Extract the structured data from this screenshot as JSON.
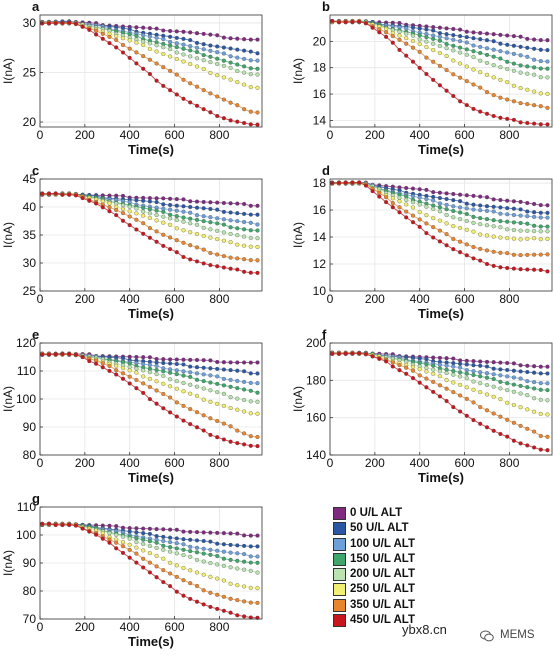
{
  "chart_data": [
    {
      "type": "line",
      "panel_label": "a",
      "xlabel": "Time(s)",
      "ylabel": "I(nA)",
      "xlim": [
        0,
        990
      ],
      "ylim": [
        19.5,
        30.8
      ],
      "xticks": [
        0,
        200,
        400,
        600,
        800
      ],
      "yticks": [
        20,
        25,
        30
      ],
      "series": [
        {
          "name": "0 U/L ALT",
          "start": 30.1,
          "values": [
            29.9,
            29.7,
            29.5,
            29.3,
            29.1,
            28.8,
            28.5,
            28.3
          ]
        },
        {
          "name": "50 U/L ALT",
          "start": 30.1,
          "values": [
            29.8,
            29.5,
            29.1,
            28.7,
            28.3,
            27.8,
            27.4,
            27.0
          ]
        },
        {
          "name": "100 U/L ALT",
          "start": 30.0,
          "values": [
            29.7,
            29.3,
            28.8,
            28.3,
            27.8,
            27.2,
            26.7,
            26.2
          ]
        },
        {
          "name": "150 U/L ALT",
          "start": 30.0,
          "values": [
            29.6,
            29.1,
            28.5,
            27.9,
            27.3,
            26.7,
            26.0,
            25.3
          ]
        },
        {
          "name": "200 U/L ALT",
          "start": 30.0,
          "values": [
            29.5,
            28.9,
            28.2,
            27.5,
            26.8,
            26.1,
            25.4,
            24.8
          ]
        },
        {
          "name": "250 U/L ALT",
          "start": 30.0,
          "values": [
            29.4,
            28.6,
            27.8,
            26.9,
            26.0,
            25.1,
            24.3,
            23.4
          ]
        },
        {
          "name": "350 U/L ALT",
          "start": 30.0,
          "values": [
            29.2,
            28.1,
            26.8,
            25.5,
            24.2,
            23.0,
            21.9,
            21.0
          ]
        },
        {
          "name": "450 U/L ALT",
          "start": 30.0,
          "values": [
            28.9,
            27.4,
            25.5,
            23.7,
            22.2,
            21.0,
            20.2,
            19.7
          ]
        }
      ]
    },
    {
      "type": "line",
      "panel_label": "b",
      "xlabel": "Time(s)",
      "ylabel": "I(nA)",
      "xlim": [
        0,
        990
      ],
      "ylim": [
        13.5,
        22.0
      ],
      "xticks": [
        0,
        200,
        400,
        600,
        800
      ],
      "yticks": [
        14,
        16,
        18,
        20
      ],
      "series": [
        {
          "name": "0 U/L ALT",
          "start": 21.5,
          "values": [
            21.4,
            21.3,
            21.1,
            20.9,
            20.7,
            20.5,
            20.3,
            20.1
          ]
        },
        {
          "name": "50 U/L ALT",
          "start": 21.5,
          "values": [
            21.3,
            21.1,
            20.8,
            20.5,
            20.2,
            19.9,
            19.6,
            19.3
          ]
        },
        {
          "name": "100 U/L ALT",
          "start": 21.5,
          "values": [
            21.2,
            20.9,
            20.5,
            20.1,
            19.7,
            19.3,
            18.9,
            18.5
          ]
        },
        {
          "name": "150 U/L ALT",
          "start": 21.5,
          "values": [
            21.1,
            20.7,
            20.2,
            19.7,
            19.2,
            18.7,
            18.2,
            17.9
          ]
        },
        {
          "name": "200 U/L ALT",
          "start": 21.5,
          "values": [
            21.0,
            20.5,
            19.9,
            19.3,
            18.7,
            18.1,
            17.6,
            17.3
          ]
        },
        {
          "name": "250 U/L ALT",
          "start": 21.5,
          "values": [
            20.9,
            20.2,
            19.4,
            18.6,
            17.8,
            17.1,
            16.5,
            16.0
          ]
        },
        {
          "name": "350 U/L ALT",
          "start": 21.5,
          "values": [
            20.7,
            19.7,
            18.6,
            17.5,
            16.6,
            15.8,
            15.3,
            15.0
          ]
        },
        {
          "name": "450 U/L ALT",
          "start": 21.5,
          "values": [
            20.3,
            18.8,
            17.2,
            15.8,
            14.8,
            14.2,
            13.9,
            13.7
          ]
        }
      ]
    },
    {
      "type": "line",
      "panel_label": "c",
      "xlabel": "Time(s)",
      "ylabel": "I(nA)",
      "xlim": [
        0,
        990
      ],
      "ylim": [
        25,
        45
      ],
      "xticks": [
        0,
        200,
        400,
        600,
        800
      ],
      "yticks": [
        25,
        30,
        35,
        40,
        45
      ],
      "series": [
        {
          "name": "0 U/L ALT",
          "start": 42.3,
          "values": [
            42.1,
            41.9,
            41.7,
            41.5,
            41.2,
            40.9,
            40.6,
            40.3
          ]
        },
        {
          "name": "50 U/L ALT",
          "start": 42.3,
          "values": [
            41.9,
            41.5,
            41.1,
            40.6,
            40.1,
            39.6,
            39.1,
            38.6
          ]
        },
        {
          "name": "100 U/L ALT",
          "start": 42.3,
          "values": [
            41.7,
            41.1,
            40.4,
            39.7,
            39.0,
            38.3,
            37.6,
            37.0
          ]
        },
        {
          "name": "150 U/L ALT",
          "start": 42.3,
          "values": [
            41.6,
            40.8,
            39.9,
            39.0,
            38.1,
            37.3,
            36.5,
            35.8
          ]
        },
        {
          "name": "200 U/L ALT",
          "start": 42.3,
          "values": [
            41.5,
            40.5,
            39.4,
            38.3,
            37.2,
            36.2,
            35.2,
            34.3
          ]
        },
        {
          "name": "250 U/L ALT",
          "start": 42.3,
          "values": [
            41.3,
            40.0,
            38.6,
            37.1,
            35.8,
            34.6,
            33.6,
            32.9
          ]
        },
        {
          "name": "350 U/L ALT",
          "start": 42.3,
          "values": [
            41.0,
            39.3,
            37.2,
            35.1,
            33.4,
            32.0,
            31.0,
            30.4
          ]
        },
        {
          "name": "450 U/L ALT",
          "start": 42.3,
          "values": [
            40.6,
            38.2,
            35.5,
            33.0,
            31.0,
            29.7,
            28.9,
            28.3
          ]
        }
      ]
    },
    {
      "type": "line",
      "panel_label": "d",
      "xlabel": "Time(s)",
      "ylabel": "I(nA)",
      "xlim": [
        0,
        990
      ],
      "ylim": [
        10,
        18.3
      ],
      "xticks": [
        0,
        200,
        400,
        600,
        800
      ],
      "yticks": [
        10,
        12,
        14,
        16,
        18
      ],
      "series": [
        {
          "name": "0 U/L ALT",
          "start": 18.0,
          "values": [
            17.8,
            17.6,
            17.4,
            17.2,
            17.0,
            16.8,
            16.6,
            16.3
          ]
        },
        {
          "name": "50 U/L ALT",
          "start": 18.0,
          "values": [
            17.6,
            17.3,
            17.0,
            16.7,
            16.4,
            16.2,
            16.0,
            15.8
          ]
        },
        {
          "name": "100 U/L ALT",
          "start": 18.0,
          "values": [
            17.5,
            17.1,
            16.7,
            16.3,
            16.0,
            15.8,
            15.6,
            15.4
          ]
        },
        {
          "name": "150 U/L ALT",
          "start": 18.0,
          "values": [
            17.4,
            16.9,
            16.4,
            15.9,
            15.5,
            15.2,
            15.0,
            14.8
          ]
        },
        {
          "name": "200 U/L ALT",
          "start": 18.0,
          "values": [
            17.3,
            16.7,
            16.1,
            15.5,
            15.0,
            14.7,
            14.5,
            14.4
          ]
        },
        {
          "name": "250 U/L ALT",
          "start": 18.0,
          "values": [
            17.1,
            16.3,
            15.5,
            14.8,
            14.3,
            14.0,
            13.8,
            13.9
          ]
        },
        {
          "name": "350 U/L ALT",
          "start": 18.0,
          "values": [
            16.9,
            15.8,
            14.8,
            13.9,
            13.2,
            12.8,
            12.7,
            12.7
          ]
        },
        {
          "name": "450 U/L ALT",
          "start": 18.0,
          "values": [
            16.6,
            15.3,
            14.1,
            13.1,
            12.3,
            11.8,
            11.6,
            11.5
          ]
        }
      ]
    },
    {
      "type": "line",
      "panel_label": "e",
      "xlabel": "Time(s)",
      "ylabel": "I(nA)",
      "xlim": [
        0,
        990
      ],
      "ylim": [
        80,
        120
      ],
      "xticks": [
        0,
        200,
        400,
        600,
        800
      ],
      "yticks": [
        80,
        90,
        100,
        110,
        120
      ],
      "series": [
        {
          "name": "0 U/L ALT",
          "start": 116.0,
          "values": [
            115.6,
            115.2,
            114.8,
            114.4,
            114.0,
            113.6,
            113.2,
            112.9
          ]
        },
        {
          "name": "50 U/L ALT",
          "start": 116.0,
          "values": [
            115.3,
            114.5,
            113.7,
            112.8,
            112.0,
            111.1,
            110.2,
            109.3
          ]
        },
        {
          "name": "100 U/L ALT",
          "start": 116.0,
          "values": [
            115.0,
            113.8,
            112.5,
            111.2,
            109.8,
            108.4,
            107.0,
            105.6
          ]
        },
        {
          "name": "150 U/L ALT",
          "start": 116.0,
          "values": [
            114.8,
            113.3,
            111.6,
            109.9,
            108.0,
            106.2,
            104.3,
            102.5
          ]
        },
        {
          "name": "200 U/L ALT",
          "start": 116.0,
          "values": [
            114.6,
            112.6,
            110.4,
            108.0,
            105.6,
            103.2,
            100.9,
            99.0
          ]
        },
        {
          "name": "250 U/L ALT",
          "start": 116.0,
          "values": [
            114.2,
            111.5,
            108.6,
            105.5,
            102.3,
            99.4,
            96.8,
            94.5
          ]
        },
        {
          "name": "350 U/L ALT",
          "start": 116.0,
          "values": [
            113.6,
            110.2,
            106.0,
            101.6,
            97.3,
            93.4,
            90.0,
            86.5
          ]
        },
        {
          "name": "450 U/L ALT",
          "start": 116.0,
          "values": [
            112.8,
            108.3,
            102.5,
            96.8,
            91.7,
            87.7,
            84.8,
            83.0
          ]
        }
      ]
    },
    {
      "type": "line",
      "panel_label": "f",
      "xlabel": "Time(s)",
      "ylabel": "I(nA)",
      "xlim": [
        0,
        990
      ],
      "ylim": [
        140,
        200
      ],
      "xticks": [
        0,
        200,
        400,
        600,
        800
      ],
      "yticks": [
        140,
        160,
        180,
        200
      ],
      "series": [
        {
          "name": "0 U/L ALT",
          "start": 194.5,
          "values": [
            193.8,
            193.0,
            192.2,
            191.3,
            190.4,
            189.4,
            188.4,
            187.3
          ]
        },
        {
          "name": "50 U/L ALT",
          "start": 194.5,
          "values": [
            193.4,
            192.1,
            190.7,
            189.3,
            187.8,
            186.3,
            184.8,
            183.3
          ]
        },
        {
          "name": "100 U/L ALT",
          "start": 194.5,
          "values": [
            193.0,
            191.2,
            189.2,
            187.1,
            185.0,
            182.8,
            180.6,
            178.5
          ]
        },
        {
          "name": "150 U/L ALT",
          "start": 194.5,
          "values": [
            192.7,
            190.4,
            187.8,
            185.2,
            182.5,
            179.8,
            177.1,
            174.5
          ]
        },
        {
          "name": "200 U/L ALT",
          "start": 194.5,
          "values": [
            192.3,
            189.4,
            186.2,
            182.8,
            179.4,
            176.0,
            172.7,
            169.5
          ]
        },
        {
          "name": "250 U/L ALT",
          "start": 194.5,
          "values": [
            191.7,
            188.0,
            183.7,
            179.1,
            174.5,
            170.0,
            165.8,
            161.5
          ]
        },
        {
          "name": "350 U/L ALT",
          "start": 194.5,
          "values": [
            191.0,
            186.0,
            180.0,
            173.6,
            167.2,
            161.2,
            155.4,
            150.0
          ]
        },
        {
          "name": "450 U/L ALT",
          "start": 194.5,
          "values": [
            189.8,
            183.0,
            174.5,
            166.0,
            158.0,
            151.5,
            146.5,
            142.5
          ]
        }
      ]
    },
    {
      "type": "line",
      "panel_label": "g",
      "xlabel": "Time(s)",
      "ylabel": "I(nA)",
      "xlim": [
        0,
        990
      ],
      "ylim": [
        70,
        110
      ],
      "xticks": [
        0,
        200,
        400,
        600,
        800
      ],
      "yticks": [
        70,
        80,
        90,
        100,
        110
      ],
      "series": [
        {
          "name": "0 U/L ALT",
          "start": 103.8,
          "values": [
            103.4,
            102.9,
            102.4,
            101.9,
            101.4,
            100.9,
            100.4,
            99.9
          ]
        },
        {
          "name": "50 U/L ALT",
          "start": 103.8,
          "values": [
            102.9,
            101.8,
            100.6,
            99.5,
            98.4,
            97.5,
            96.6,
            95.8
          ]
        },
        {
          "name": "100 U/L ALT",
          "start": 103.8,
          "values": [
            102.5,
            101.0,
            99.4,
            97.8,
            96.3,
            94.9,
            93.6,
            92.5
          ]
        },
        {
          "name": "150 U/L ALT",
          "start": 103.8,
          "values": [
            102.3,
            100.4,
            98.4,
            96.4,
            94.6,
            92.9,
            91.3,
            90.0
          ]
        },
        {
          "name": "200 U/L ALT",
          "start": 103.8,
          "values": [
            102.0,
            99.7,
            97.2,
            94.7,
            92.4,
            90.3,
            88.4,
            86.8
          ]
        },
        {
          "name": "250 U/L ALT",
          "start": 103.8,
          "values": [
            101.4,
            98.3,
            94.8,
            91.3,
            88.0,
            85.2,
            82.8,
            81.0
          ]
        },
        {
          "name": "350 U/L ALT",
          "start": 103.8,
          "values": [
            100.8,
            96.8,
            92.2,
            87.5,
            83.3,
            79.8,
            77.2,
            75.5
          ]
        },
        {
          "name": "450 U/L ALT",
          "start": 103.8,
          "values": [
            100.0,
            95.0,
            89.0,
            83.0,
            78.0,
            74.5,
            72.0,
            70.5
          ]
        }
      ]
    }
  ],
  "legend": {
    "items": [
      {
        "label": "0 U/L ALT",
        "color": "#7e2a7e"
      },
      {
        "label": "50 U/L ALT",
        "color": "#2b56a3"
      },
      {
        "label": "100 U/L ALT",
        "color": "#6d9fd8"
      },
      {
        "label": "150 U/L ALT",
        "color": "#3ea66a"
      },
      {
        "label": "200 U/L ALT",
        "color": "#b9e3b0"
      },
      {
        "label": "250 U/L ALT",
        "color": "#f2ee73"
      },
      {
        "label": "350 U/L ALT",
        "color": "#e8862f"
      },
      {
        "label": "450 U/L ALT",
        "color": "#c8161d"
      }
    ]
  },
  "watermark": {
    "site": "ybx8.cn",
    "brand": "MEMS",
    "icon": "wechat-icon"
  }
}
